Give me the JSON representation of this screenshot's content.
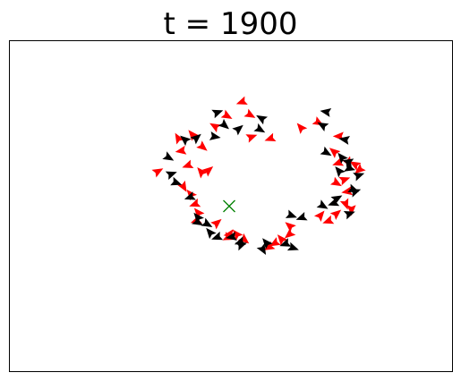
{
  "chart_data": {
    "type": "scatter",
    "title": "t = 1900",
    "xlabel": "",
    "ylabel": "",
    "xlim": [
      0,
      100
    ],
    "ylim": [
      0,
      100
    ],
    "axes_ticks": false,
    "grid": false,
    "colors": {
      "red": "#ff0000",
      "black": "#000000",
      "marker": "#008000"
    },
    "target_marker": {
      "symbol": "x",
      "x": 49.6,
      "y": 50.0,
      "color": "#008000"
    },
    "series": [
      {
        "color": "red",
        "points": [
          [
            52.5,
            81.5,
            200
          ],
          [
            49.1,
            77.3,
            330
          ],
          [
            54.3,
            77.6,
            330
          ],
          [
            46.4,
            74.1,
            150
          ],
          [
            38.1,
            70.5,
            120
          ],
          [
            41.3,
            71.6,
            130
          ],
          [
            43.6,
            67.9,
            320
          ],
          [
            38.8,
            66.7,
            190
          ],
          [
            40.3,
            62.3,
            200
          ],
          [
            54.6,
            70.9,
            20
          ],
          [
            58.9,
            70.4,
            200
          ],
          [
            65.8,
            73.7,
            130
          ],
          [
            69.7,
            75.3,
            330
          ],
          [
            74.4,
            71.1,
            180
          ],
          [
            73.3,
            66.4,
            140
          ],
          [
            74.2,
            63.0,
            200
          ],
          [
            76.5,
            63.3,
            300
          ],
          [
            78.0,
            62.6,
            150
          ],
          [
            79.0,
            61.0,
            220
          ],
          [
            75.6,
            58.0,
            20
          ],
          [
            73.8,
            57.0,
            330
          ],
          [
            76.3,
            54.4,
            190
          ],
          [
            75.9,
            50.7,
            290
          ],
          [
            77.2,
            49.0,
            270
          ],
          [
            73.8,
            47.7,
            40
          ],
          [
            72.0,
            45.5,
            200
          ],
          [
            70.2,
            47.2,
            50
          ],
          [
            33.5,
            60.5,
            30
          ],
          [
            43.3,
            60.3,
            130
          ],
          [
            44.9,
            60.8,
            40
          ],
          [
            39.3,
            55.9,
            300
          ],
          [
            40.9,
            53.6,
            130
          ],
          [
            41.9,
            50.6,
            200
          ],
          [
            42.6,
            48.0,
            130
          ],
          [
            42.2,
            45.6,
            200
          ],
          [
            46.8,
            44.9,
            40
          ],
          [
            49.7,
            41.5,
            190
          ],
          [
            51.3,
            41.5,
            130
          ],
          [
            53.0,
            39.9,
            320
          ],
          [
            49.4,
            40.5,
            340
          ],
          [
            63.3,
            44.0,
            140
          ],
          [
            63.2,
            41.5,
            220
          ],
          [
            61.4,
            40.0,
            130
          ],
          [
            59.9,
            38.8,
            210
          ],
          [
            58.6,
            37.6,
            210
          ]
        ]
      },
      {
        "color": "black",
        "points": [
          [
            46.9,
            78.3,
            20
          ],
          [
            56.9,
            76.5,
            150
          ],
          [
            48.5,
            74.5,
            320
          ],
          [
            51.7,
            73.3,
            40
          ],
          [
            56.5,
            73.2,
            330
          ],
          [
            46.3,
            71.0,
            350
          ],
          [
            39.6,
            70.1,
            140
          ],
          [
            42.2,
            70.6,
            40
          ],
          [
            71.5,
            78.5,
            170
          ],
          [
            70.7,
            74.4,
            150
          ],
          [
            75.7,
            70.1,
            170
          ],
          [
            71.5,
            66.2,
            330
          ],
          [
            75.0,
            64.7,
            130
          ],
          [
            76.5,
            63.4,
            30
          ],
          [
            76.7,
            61.4,
            210
          ],
          [
            78.8,
            59.3,
            20
          ],
          [
            74.4,
            60.6,
            130
          ],
          [
            77.6,
            55.0,
            340
          ],
          [
            78.0,
            54.4,
            20
          ],
          [
            73.9,
            52.3,
            30
          ],
          [
            76.7,
            47.7,
            20
          ],
          [
            35.9,
            64.7,
            330
          ],
          [
            36.5,
            59.7,
            20
          ],
          [
            37.6,
            57.1,
            340
          ],
          [
            40.8,
            52.7,
            200
          ],
          [
            42.5,
            46.6,
            130
          ],
          [
            42.5,
            45.1,
            330
          ],
          [
            44.6,
            44.6,
            330
          ],
          [
            45.3,
            42.0,
            130
          ],
          [
            46.9,
            40.6,
            200
          ],
          [
            50.2,
            40.7,
            190
          ],
          [
            52.1,
            39.1,
            200
          ],
          [
            52.3,
            38.3,
            20
          ],
          [
            57.2,
            36.9,
            300
          ],
          [
            58.0,
            38.9,
            130
          ],
          [
            62.3,
            38.6,
            200
          ],
          [
            64.0,
            37.4,
            340
          ],
          [
            63.6,
            47.2,
            340
          ],
          [
            66.0,
            46.5,
            200
          ],
          [
            70.7,
            50.1,
            330
          ],
          [
            73.2,
            50.9,
            200
          ]
        ]
      }
    ]
  }
}
